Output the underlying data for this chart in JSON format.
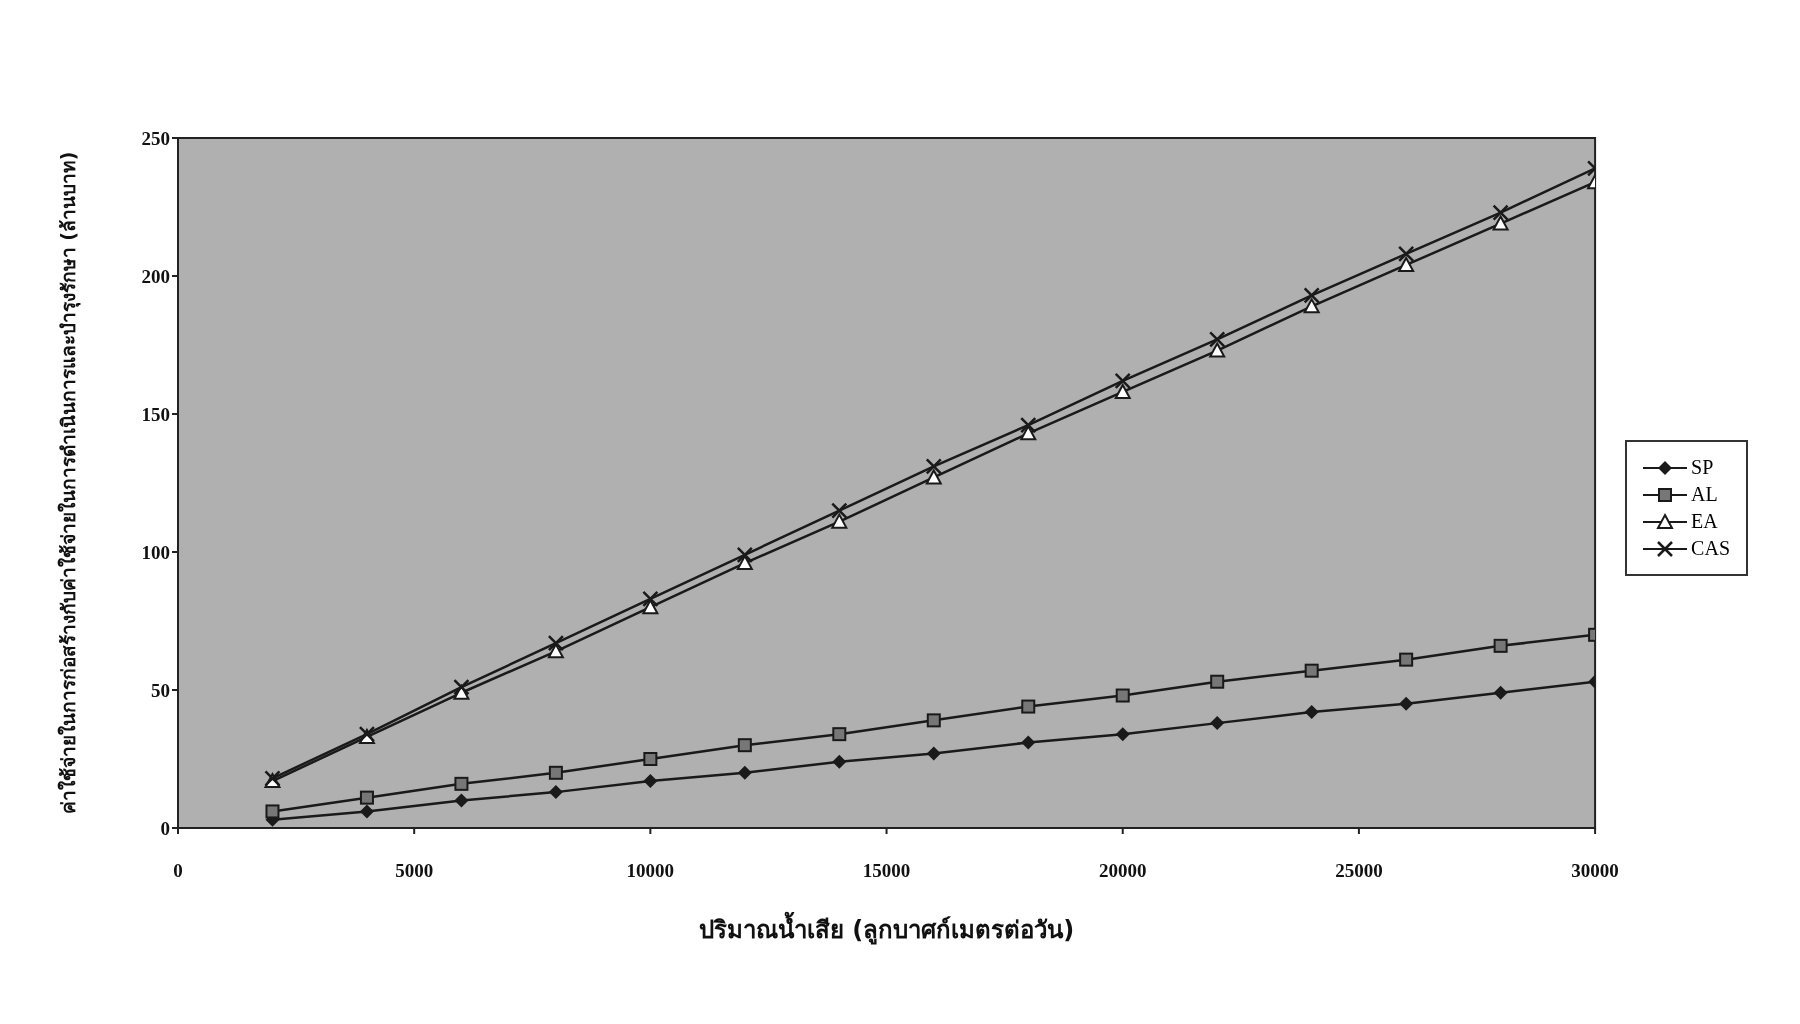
{
  "chart_data": {
    "type": "line",
    "xlabel": "ปริมาณน้ำเสีย (ลูกบาศก์เมตรต่อวัน)",
    "ylabel": "ค่าใช้จ่ายในการก่อสร้างกับค่าใช้จ่ายในการดำเนินการและบำรุงรักษา (ล้านบาท)",
    "x": [
      2000,
      4000,
      6000,
      8000,
      10000,
      12000,
      14000,
      16000,
      18000,
      20000,
      22000,
      24000,
      26000,
      28000,
      30000
    ],
    "xlim": [
      0,
      30000
    ],
    "xticks": [
      0,
      5000,
      10000,
      15000,
      20000,
      25000,
      30000
    ],
    "ylim": [
      0,
      250
    ],
    "yticks": [
      0,
      50,
      100,
      150,
      200,
      250
    ],
    "legend": "right",
    "line_style": "solid",
    "series": [
      {
        "name": "SP",
        "color": "#1a1a1a",
        "marker": "diamond",
        "values": [
          3,
          6,
          10,
          13,
          17,
          20,
          24,
          27,
          31,
          34,
          38,
          42,
          45,
          49,
          53
        ]
      },
      {
        "name": "AL",
        "color": "#1a1a1a",
        "marker": "square",
        "values": [
          6,
          11,
          16,
          20,
          25,
          30,
          34,
          39,
          44,
          48,
          53,
          57,
          61,
          66,
          70
        ]
      },
      {
        "name": "EA",
        "color": "#1a1a1a",
        "marker": "triangle",
        "values": [
          17,
          33,
          49,
          64,
          80,
          96,
          111,
          127,
          143,
          158,
          173,
          189,
          204,
          219,
          234
        ]
      },
      {
        "name": "CAS",
        "color": "#1a1a1a",
        "marker": "cross",
        "values": [
          18,
          34,
          51,
          67,
          83,
          99,
          115,
          131,
          146,
          162,
          177,
          193,
          208,
          223,
          239
        ]
      }
    ]
  }
}
